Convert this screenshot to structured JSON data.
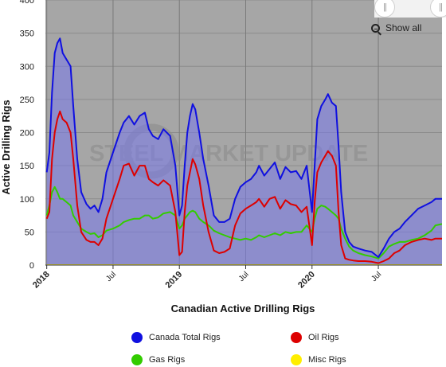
{
  "chart_data": {
    "type": "area",
    "title": "",
    "xlabel": "Canadian Active Drilling Rigs",
    "ylabel": "Active Drilling Rigs",
    "ylim": [
      0,
      400
    ],
    "yticks": [
      0,
      50,
      100,
      150,
      200,
      250,
      300,
      350,
      400
    ],
    "xticks": [
      {
        "label": "2018",
        "x": 2018.0,
        "bold": true
      },
      {
        "label": "Jul",
        "x": 2018.5,
        "bold": false
      },
      {
        "label": "2019",
        "x": 2019.0,
        "bold": true
      },
      {
        "label": "Jul",
        "x": 2019.5,
        "bold": false
      },
      {
        "label": "2020",
        "x": 2020.0,
        "bold": true
      },
      {
        "label": "Jul",
        "x": 2020.5,
        "bold": false
      }
    ],
    "xlim": [
      2017.99,
      2020.98
    ],
    "grid": true,
    "legend_position": "bottom",
    "watermark": "STEEL MARKET UPDATE",
    "series": [
      {
        "name": "Canada Total Rigs",
        "color": "#1010e0",
        "points": [
          [
            2018.0,
            140
          ],
          [
            2018.02,
            170
          ],
          [
            2018.04,
            260
          ],
          [
            2018.06,
            320
          ],
          [
            2018.08,
            335
          ],
          [
            2018.1,
            342
          ],
          [
            2018.12,
            320
          ],
          [
            2018.15,
            310
          ],
          [
            2018.18,
            300
          ],
          [
            2018.2,
            240
          ],
          [
            2018.23,
            160
          ],
          [
            2018.26,
            110
          ],
          [
            2018.3,
            92
          ],
          [
            2018.33,
            85
          ],
          [
            2018.36,
            90
          ],
          [
            2018.39,
            80
          ],
          [
            2018.42,
            100
          ],
          [
            2018.45,
            140
          ],
          [
            2018.5,
            170
          ],
          [
            2018.55,
            200
          ],
          [
            2018.58,
            215
          ],
          [
            2018.62,
            225
          ],
          [
            2018.66,
            212
          ],
          [
            2018.7,
            225
          ],
          [
            2018.74,
            230
          ],
          [
            2018.77,
            205
          ],
          [
            2018.8,
            195
          ],
          [
            2018.84,
            190
          ],
          [
            2018.88,
            205
          ],
          [
            2018.93,
            195
          ],
          [
            2018.97,
            150
          ],
          [
            2019.0,
            75
          ],
          [
            2019.02,
            90
          ],
          [
            2019.04,
            150
          ],
          [
            2019.06,
            200
          ],
          [
            2019.08,
            225
          ],
          [
            2019.1,
            243
          ],
          [
            2019.12,
            235
          ],
          [
            2019.15,
            200
          ],
          [
            2019.18,
            160
          ],
          [
            2019.22,
            120
          ],
          [
            2019.26,
            75
          ],
          [
            2019.3,
            65
          ],
          [
            2019.34,
            65
          ],
          [
            2019.38,
            70
          ],
          [
            2019.42,
            100
          ],
          [
            2019.46,
            118
          ],
          [
            2019.5,
            125
          ],
          [
            2019.54,
            130
          ],
          [
            2019.58,
            140
          ],
          [
            2019.6,
            150
          ],
          [
            2019.64,
            135
          ],
          [
            2019.68,
            145
          ],
          [
            2019.72,
            155
          ],
          [
            2019.76,
            130
          ],
          [
            2019.8,
            148
          ],
          [
            2019.84,
            140
          ],
          [
            2019.88,
            142
          ],
          [
            2019.92,
            130
          ],
          [
            2019.96,
            150
          ],
          [
            2020.0,
            80
          ],
          [
            2020.02,
            150
          ],
          [
            2020.04,
            220
          ],
          [
            2020.07,
            240
          ],
          [
            2020.1,
            250
          ],
          [
            2020.12,
            258
          ],
          [
            2020.15,
            245
          ],
          [
            2020.18,
            240
          ],
          [
            2020.2,
            180
          ],
          [
            2020.22,
            110
          ],
          [
            2020.25,
            50
          ],
          [
            2020.28,
            35
          ],
          [
            2020.31,
            28
          ],
          [
            2020.35,
            25
          ],
          [
            2020.4,
            22
          ],
          [
            2020.45,
            20
          ],
          [
            2020.5,
            12
          ],
          [
            2020.54,
            25
          ],
          [
            2020.58,
            40
          ],
          [
            2020.62,
            50
          ],
          [
            2020.66,
            55
          ],
          [
            2020.7,
            65
          ],
          [
            2020.75,
            75
          ],
          [
            2020.8,
            85
          ],
          [
            2020.85,
            90
          ],
          [
            2020.9,
            95
          ],
          [
            2020.93,
            100
          ],
          [
            2020.98,
            100
          ]
        ]
      },
      {
        "name": "Oil Rigs",
        "color": "#dd0000",
        "points": [
          [
            2018.0,
            70
          ],
          [
            2018.02,
            80
          ],
          [
            2018.04,
            160
          ],
          [
            2018.06,
            200
          ],
          [
            2018.08,
            220
          ],
          [
            2018.1,
            232
          ],
          [
            2018.12,
            220
          ],
          [
            2018.15,
            215
          ],
          [
            2018.18,
            200
          ],
          [
            2018.2,
            160
          ],
          [
            2018.23,
            90
          ],
          [
            2018.26,
            50
          ],
          [
            2018.3,
            38
          ],
          [
            2018.33,
            35
          ],
          [
            2018.36,
            35
          ],
          [
            2018.39,
            30
          ],
          [
            2018.42,
            40
          ],
          [
            2018.45,
            70
          ],
          [
            2018.5,
            100
          ],
          [
            2018.55,
            130
          ],
          [
            2018.58,
            150
          ],
          [
            2018.62,
            153
          ],
          [
            2018.66,
            135
          ],
          [
            2018.7,
            150
          ],
          [
            2018.74,
            150
          ],
          [
            2018.77,
            130
          ],
          [
            2018.8,
            125
          ],
          [
            2018.84,
            120
          ],
          [
            2018.88,
            128
          ],
          [
            2018.93,
            120
          ],
          [
            2018.97,
            80
          ],
          [
            2019.0,
            15
          ],
          [
            2019.02,
            20
          ],
          [
            2019.04,
            80
          ],
          [
            2019.06,
            120
          ],
          [
            2019.08,
            140
          ],
          [
            2019.1,
            160
          ],
          [
            2019.12,
            152
          ],
          [
            2019.15,
            130
          ],
          [
            2019.18,
            90
          ],
          [
            2019.22,
            50
          ],
          [
            2019.26,
            22
          ],
          [
            2019.3,
            18
          ],
          [
            2019.34,
            20
          ],
          [
            2019.38,
            25
          ],
          [
            2019.42,
            60
          ],
          [
            2019.46,
            78
          ],
          [
            2019.5,
            85
          ],
          [
            2019.54,
            90
          ],
          [
            2019.58,
            95
          ],
          [
            2019.6,
            100
          ],
          [
            2019.64,
            88
          ],
          [
            2019.68,
            100
          ],
          [
            2019.72,
            103
          ],
          [
            2019.76,
            85
          ],
          [
            2019.8,
            98
          ],
          [
            2019.84,
            92
          ],
          [
            2019.88,
            90
          ],
          [
            2019.92,
            80
          ],
          [
            2019.96,
            88
          ],
          [
            2020.0,
            30
          ],
          [
            2020.02,
            95
          ],
          [
            2020.04,
            140
          ],
          [
            2020.07,
            155
          ],
          [
            2020.1,
            165
          ],
          [
            2020.12,
            172
          ],
          [
            2020.15,
            165
          ],
          [
            2020.18,
            150
          ],
          [
            2020.2,
            80
          ],
          [
            2020.22,
            30
          ],
          [
            2020.25,
            10
          ],
          [
            2020.28,
            8
          ],
          [
            2020.31,
            7
          ],
          [
            2020.35,
            6
          ],
          [
            2020.4,
            6
          ],
          [
            2020.45,
            5
          ],
          [
            2020.5,
            3
          ],
          [
            2020.54,
            6
          ],
          [
            2020.58,
            10
          ],
          [
            2020.62,
            18
          ],
          [
            2020.66,
            22
          ],
          [
            2020.7,
            30
          ],
          [
            2020.75,
            35
          ],
          [
            2020.8,
            38
          ],
          [
            2020.85,
            40
          ],
          [
            2020.9,
            38
          ],
          [
            2020.93,
            40
          ],
          [
            2020.98,
            40
          ]
        ]
      },
      {
        "name": "Gas Rigs",
        "color": "#33cc00",
        "points": [
          [
            2018.0,
            75
          ],
          [
            2018.02,
            90
          ],
          [
            2018.04,
            110
          ],
          [
            2018.06,
            118
          ],
          [
            2018.08,
            110
          ],
          [
            2018.1,
            100
          ],
          [
            2018.12,
            100
          ],
          [
            2018.15,
            95
          ],
          [
            2018.18,
            90
          ],
          [
            2018.2,
            75
          ],
          [
            2018.23,
            65
          ],
          [
            2018.26,
            55
          ],
          [
            2018.3,
            50
          ],
          [
            2018.33,
            47
          ],
          [
            2018.36,
            48
          ],
          [
            2018.39,
            42
          ],
          [
            2018.42,
            45
          ],
          [
            2018.45,
            52
          ],
          [
            2018.5,
            55
          ],
          [
            2018.55,
            60
          ],
          [
            2018.58,
            65
          ],
          [
            2018.62,
            68
          ],
          [
            2018.66,
            70
          ],
          [
            2018.7,
            70
          ],
          [
            2018.74,
            75
          ],
          [
            2018.77,
            75
          ],
          [
            2018.8,
            70
          ],
          [
            2018.84,
            72
          ],
          [
            2018.88,
            78
          ],
          [
            2018.93,
            80
          ],
          [
            2018.97,
            75
          ],
          [
            2019.0,
            55
          ],
          [
            2019.02,
            60
          ],
          [
            2019.04,
            70
          ],
          [
            2019.06,
            75
          ],
          [
            2019.08,
            80
          ],
          [
            2019.1,
            82
          ],
          [
            2019.12,
            80
          ],
          [
            2019.15,
            70
          ],
          [
            2019.18,
            65
          ],
          [
            2019.22,
            60
          ],
          [
            2019.26,
            52
          ],
          [
            2019.3,
            48
          ],
          [
            2019.34,
            45
          ],
          [
            2019.38,
            42
          ],
          [
            2019.42,
            40
          ],
          [
            2019.46,
            38
          ],
          [
            2019.5,
            40
          ],
          [
            2019.54,
            38
          ],
          [
            2019.58,
            42
          ],
          [
            2019.6,
            45
          ],
          [
            2019.64,
            42
          ],
          [
            2019.68,
            45
          ],
          [
            2019.72,
            48
          ],
          [
            2019.76,
            45
          ],
          [
            2019.8,
            50
          ],
          [
            2019.84,
            48
          ],
          [
            2019.88,
            50
          ],
          [
            2019.92,
            50
          ],
          [
            2019.96,
            60
          ],
          [
            2020.0,
            50
          ],
          [
            2020.02,
            70
          ],
          [
            2020.04,
            85
          ],
          [
            2020.07,
            90
          ],
          [
            2020.1,
            88
          ],
          [
            2020.12,
            85
          ],
          [
            2020.15,
            80
          ],
          [
            2020.18,
            75
          ],
          [
            2020.2,
            70
          ],
          [
            2020.22,
            55
          ],
          [
            2020.25,
            40
          ],
          [
            2020.28,
            28
          ],
          [
            2020.31,
            22
          ],
          [
            2020.35,
            18
          ],
          [
            2020.4,
            15
          ],
          [
            2020.45,
            13
          ],
          [
            2020.5,
            10
          ],
          [
            2020.54,
            18
          ],
          [
            2020.58,
            28
          ],
          [
            2020.62,
            32
          ],
          [
            2020.66,
            35
          ],
          [
            2020.7,
            35
          ],
          [
            2020.75,
            38
          ],
          [
            2020.8,
            40
          ],
          [
            2020.85,
            45
          ],
          [
            2020.9,
            52
          ],
          [
            2020.93,
            60
          ],
          [
            2020.98,
            62
          ]
        ]
      },
      {
        "name": "Misc Rigs",
        "color": "#ffee00",
        "points": [
          [
            2018.0,
            0
          ],
          [
            2018.5,
            0
          ],
          [
            2019.0,
            0
          ],
          [
            2019.5,
            0
          ],
          [
            2020.0,
            0
          ],
          [
            2020.5,
            0
          ],
          [
            2020.98,
            0
          ]
        ]
      }
    ]
  },
  "controls": {
    "show_all_label": "Show all"
  },
  "legend": {
    "items": [
      {
        "label": "Canada Total Rigs",
        "color": "#1010e0"
      },
      {
        "label": "Oil Rigs",
        "color": "#dd0000"
      },
      {
        "label": "Gas Rigs",
        "color": "#33cc00"
      },
      {
        "label": "Misc Rigs",
        "color": "#ffee00"
      }
    ]
  }
}
